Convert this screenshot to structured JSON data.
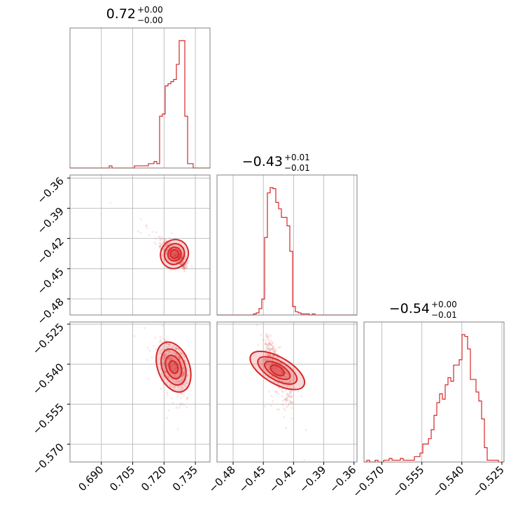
{
  "chart_data": {
    "type": "corner",
    "color": "#d62728",
    "parameters": [
      {
        "title_value": "0.72",
        "title_plus": "+0.00",
        "title_minus": "−0.00",
        "range": [
          0.675,
          0.742
        ],
        "ticks": [
          0.69,
          0.705,
          0.72,
          0.735
        ],
        "tick_labels": [
          "0.690",
          "0.705",
          "0.720",
          "0.735"
        ],
        "hist": {
          "edges_start": 0.675,
          "bin_width": 0.00134,
          "counts": [
            0,
            0,
            0,
            0,
            0,
            0,
            0,
            0,
            0,
            0,
            0,
            0,
            0,
            0,
            1,
            0,
            0,
            0,
            0,
            0,
            0,
            0,
            0,
            1,
            1,
            1,
            1,
            1,
            2,
            2,
            3,
            2,
            24,
            25,
            38,
            39,
            40,
            41,
            48,
            59,
            59,
            24,
            2,
            2,
            0,
            0,
            0,
            0,
            0,
            0
          ]
        }
      },
      {
        "title_value": "−0.43",
        "title_plus": "+0.01",
        "title_minus": "−0.01",
        "range": [
          -0.496,
          -0.357
        ],
        "ticks": [
          -0.48,
          -0.45,
          -0.42,
          -0.39,
          -0.36
        ],
        "tick_labels": [
          "−0.48",
          "−0.45",
          "−0.42",
          "−0.39",
          "−0.36"
        ],
        "hist": {
          "edges_start": -0.496,
          "bin_width": 0.00278,
          "counts": [
            0,
            0,
            0,
            0,
            0,
            0,
            0,
            0,
            0,
            0,
            0,
            0,
            0,
            1,
            2,
            6,
            15,
            73,
            115,
            120,
            119,
            106,
            100,
            92,
            92,
            84,
            60,
            8,
            3,
            2,
            1,
            1,
            1,
            0,
            1,
            0,
            0,
            0,
            0,
            0,
            0,
            0,
            0,
            0,
            0,
            0,
            0,
            0,
            0,
            0
          ]
        }
      },
      {
        "title_value": "−0.54",
        "title_plus": "+0.00",
        "title_minus": "−0.01",
        "range": [
          -0.5767,
          -0.5242
        ],
        "ticks": [
          -0.57,
          -0.555,
          -0.54,
          -0.525
        ],
        "tick_labels": [
          "−0.570",
          "−0.555",
          "−0.540",
          "−0.525"
        ],
        "hist": {
          "edges_start": -0.5767,
          "bin_width": 0.00105,
          "counts": [
            0,
            1,
            0,
            0,
            1,
            0,
            0,
            1,
            1,
            2,
            1,
            1,
            1,
            2,
            1,
            1,
            1,
            1,
            3,
            3,
            5,
            10,
            10,
            13,
            18,
            26,
            33,
            38,
            35,
            43,
            47,
            45,
            54,
            54,
            57,
            71,
            70,
            63,
            46,
            46,
            39,
            34,
            24,
            8,
            1,
            1,
            1,
            1,
            0,
            0
          ]
        }
      }
    ],
    "correlations": {
      "xy_10": -0.85,
      "xy_20": -0.45,
      "xy_21": -0.75
    }
  }
}
